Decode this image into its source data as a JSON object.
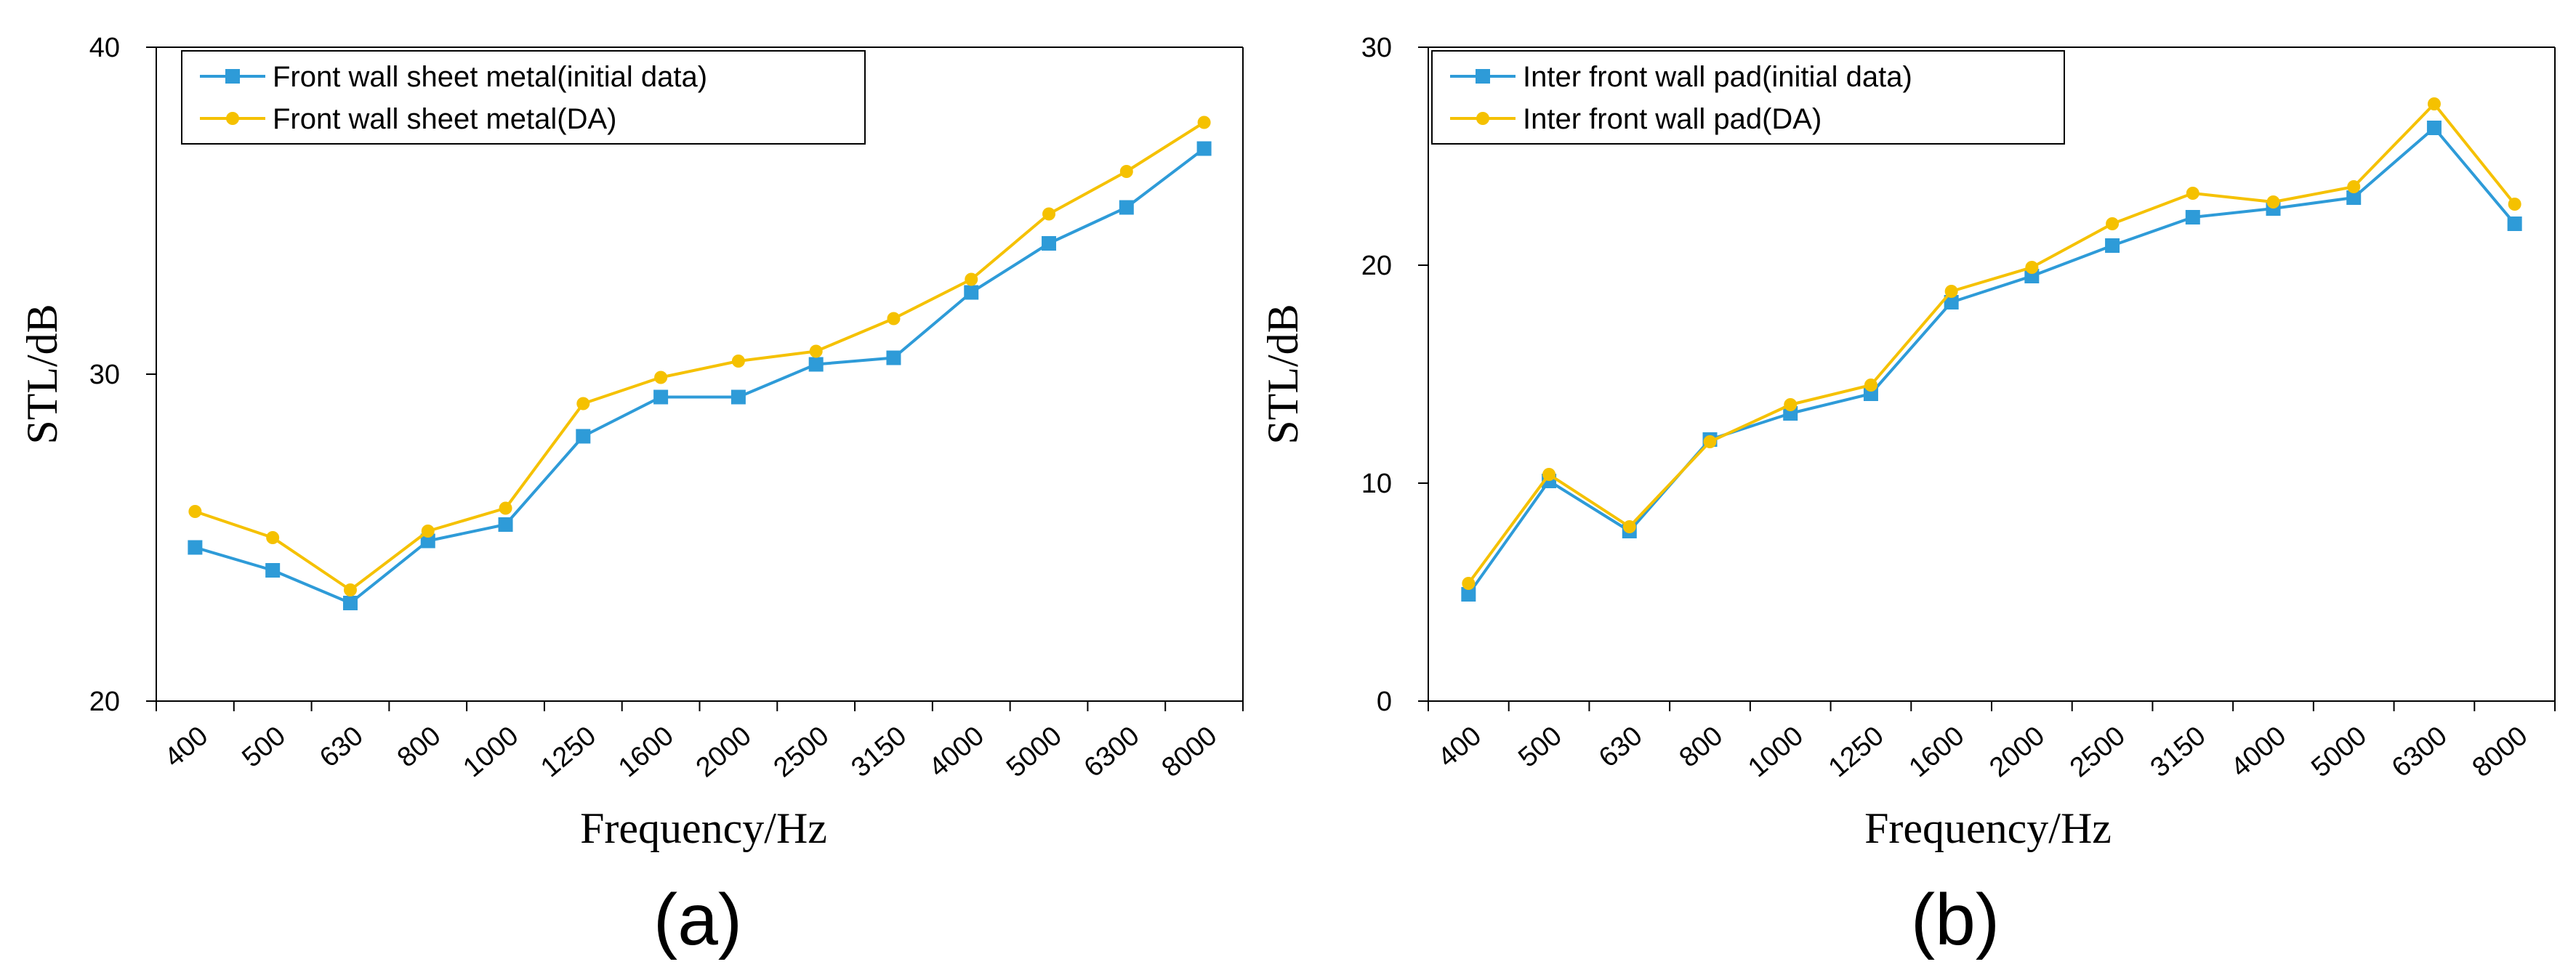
{
  "colors": {
    "series_initial": "#2E9BD8",
    "series_da": "#F5C100",
    "axis": "#000000"
  },
  "chart_data": [
    {
      "type": "line",
      "caption": "(a)",
      "categories": [
        "400",
        "500",
        "630",
        "800",
        "1000",
        "1250",
        "1600",
        "2000",
        "2500",
        "3150",
        "4000",
        "5000",
        "6300",
        "8000"
      ],
      "xlabel": "Frequency/Hz",
      "ylabel": "STL/dB",
      "ylim": [
        20,
        40
      ],
      "yticks": [
        20,
        30,
        40
      ],
      "grid": false,
      "legend_position": "top-left",
      "series": [
        {
          "name": "Front wall sheet metal(initial data)",
          "marker": "square",
          "values": [
            24.7,
            24.0,
            23.0,
            24.9,
            25.4,
            28.1,
            29.3,
            29.3,
            30.3,
            30.5,
            32.5,
            34.0,
            35.1,
            36.9
          ]
        },
        {
          "name": "Front wall sheet metal(DA)",
          "marker": "circle",
          "values": [
            25.8,
            25.0,
            23.4,
            25.2,
            25.9,
            29.1,
            29.9,
            30.4,
            30.7,
            31.7,
            32.9,
            34.9,
            36.2,
            37.7
          ]
        }
      ]
    },
    {
      "type": "line",
      "caption": "(b)",
      "categories": [
        "400",
        "500",
        "630",
        "800",
        "1000",
        "1250",
        "1600",
        "2000",
        "2500",
        "3150",
        "4000",
        "5000",
        "6300",
        "8000"
      ],
      "xlabel": "Frequency/Hz",
      "ylabel": "STL/dB",
      "ylim": [
        0,
        30
      ],
      "yticks": [
        0,
        10,
        20,
        30
      ],
      "grid": false,
      "legend_position": "top-left",
      "series": [
        {
          "name": "Inter front wall pad(initial data)",
          "marker": "square",
          "values": [
            4.9,
            10.1,
            7.8,
            12.0,
            13.2,
            14.1,
            18.3,
            19.5,
            20.9,
            22.2,
            22.6,
            23.1,
            26.3,
            21.9
          ]
        },
        {
          "name": "Inter front wall pad(DA)",
          "marker": "circle",
          "values": [
            5.4,
            10.4,
            8.0,
            11.9,
            13.6,
            14.5,
            18.8,
            19.9,
            21.9,
            23.3,
            22.9,
            23.6,
            27.4,
            22.8
          ]
        }
      ]
    }
  ]
}
